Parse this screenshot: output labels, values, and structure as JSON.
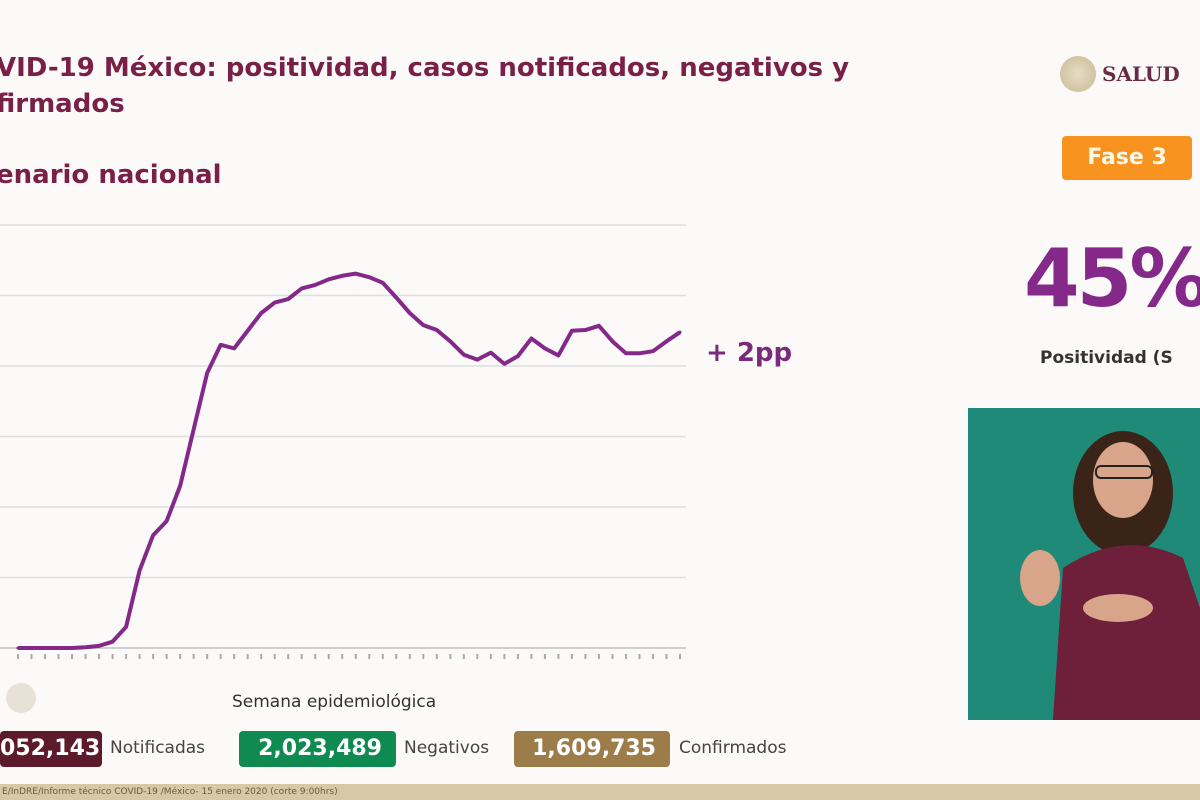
{
  "header": {
    "title_line1": "VID-19 México: positividad, casos notificados, negativos y",
    "title_line2": "firmados",
    "subtitle": "enario nacional"
  },
  "logo": {
    "text": "SALUD"
  },
  "phase_badge": {
    "label": "Fase 3",
    "color": "#f7931e"
  },
  "positivity": {
    "value": "45%",
    "label": "Positividad (S"
  },
  "change_label": "+ 2pp",
  "chart_data": {
    "type": "line",
    "xlabel": "Semana epidemiológica",
    "ylabel": "",
    "ylim": [
      0,
      60
    ],
    "grid": true,
    "line_color": "#84288a",
    "x": [
      1,
      2,
      3,
      4,
      5,
      6,
      7,
      8,
      9,
      10,
      11,
      12,
      13,
      14,
      15,
      16,
      17,
      18,
      19,
      20,
      21,
      22,
      23,
      24,
      25,
      26,
      27,
      28,
      29,
      30,
      31,
      32,
      33,
      34,
      35,
      36,
      37,
      38,
      39,
      40,
      41,
      42,
      43,
      44,
      45,
      46,
      47,
      48,
      49,
      50
    ],
    "values": [
      0,
      0,
      0,
      0,
      0,
      0.1,
      0.3,
      0.9,
      3,
      11,
      16,
      18,
      23,
      31,
      39,
      43,
      42.5,
      45,
      47.5,
      49,
      49.5,
      51,
      51.5,
      52.3,
      52.8,
      53.1,
      52.6,
      51.8,
      49.7,
      47.5,
      45.8,
      45.1,
      43.5,
      41.6,
      40.9,
      41.9,
      40.3,
      41.4,
      43.9,
      42.5,
      41.5,
      45,
      45.1,
      45.7,
      43.5,
      41.8,
      41.8,
      42.1,
      43.5,
      44.8
    ]
  },
  "totals": [
    {
      "value": "052,143",
      "label": "Notificadas",
      "color": "#5c1a2a"
    },
    {
      "value": "2,023,489",
      "label": "Negativos",
      "color": "#0f8a50"
    },
    {
      "value": "1,609,735",
      "label": "Confirmados",
      "color": "#9c7d4a"
    }
  ],
  "footer": "E/InDRE/Informe técnico COVID-19 /México- 15 enero 2020 (corte 9:00hrs)"
}
